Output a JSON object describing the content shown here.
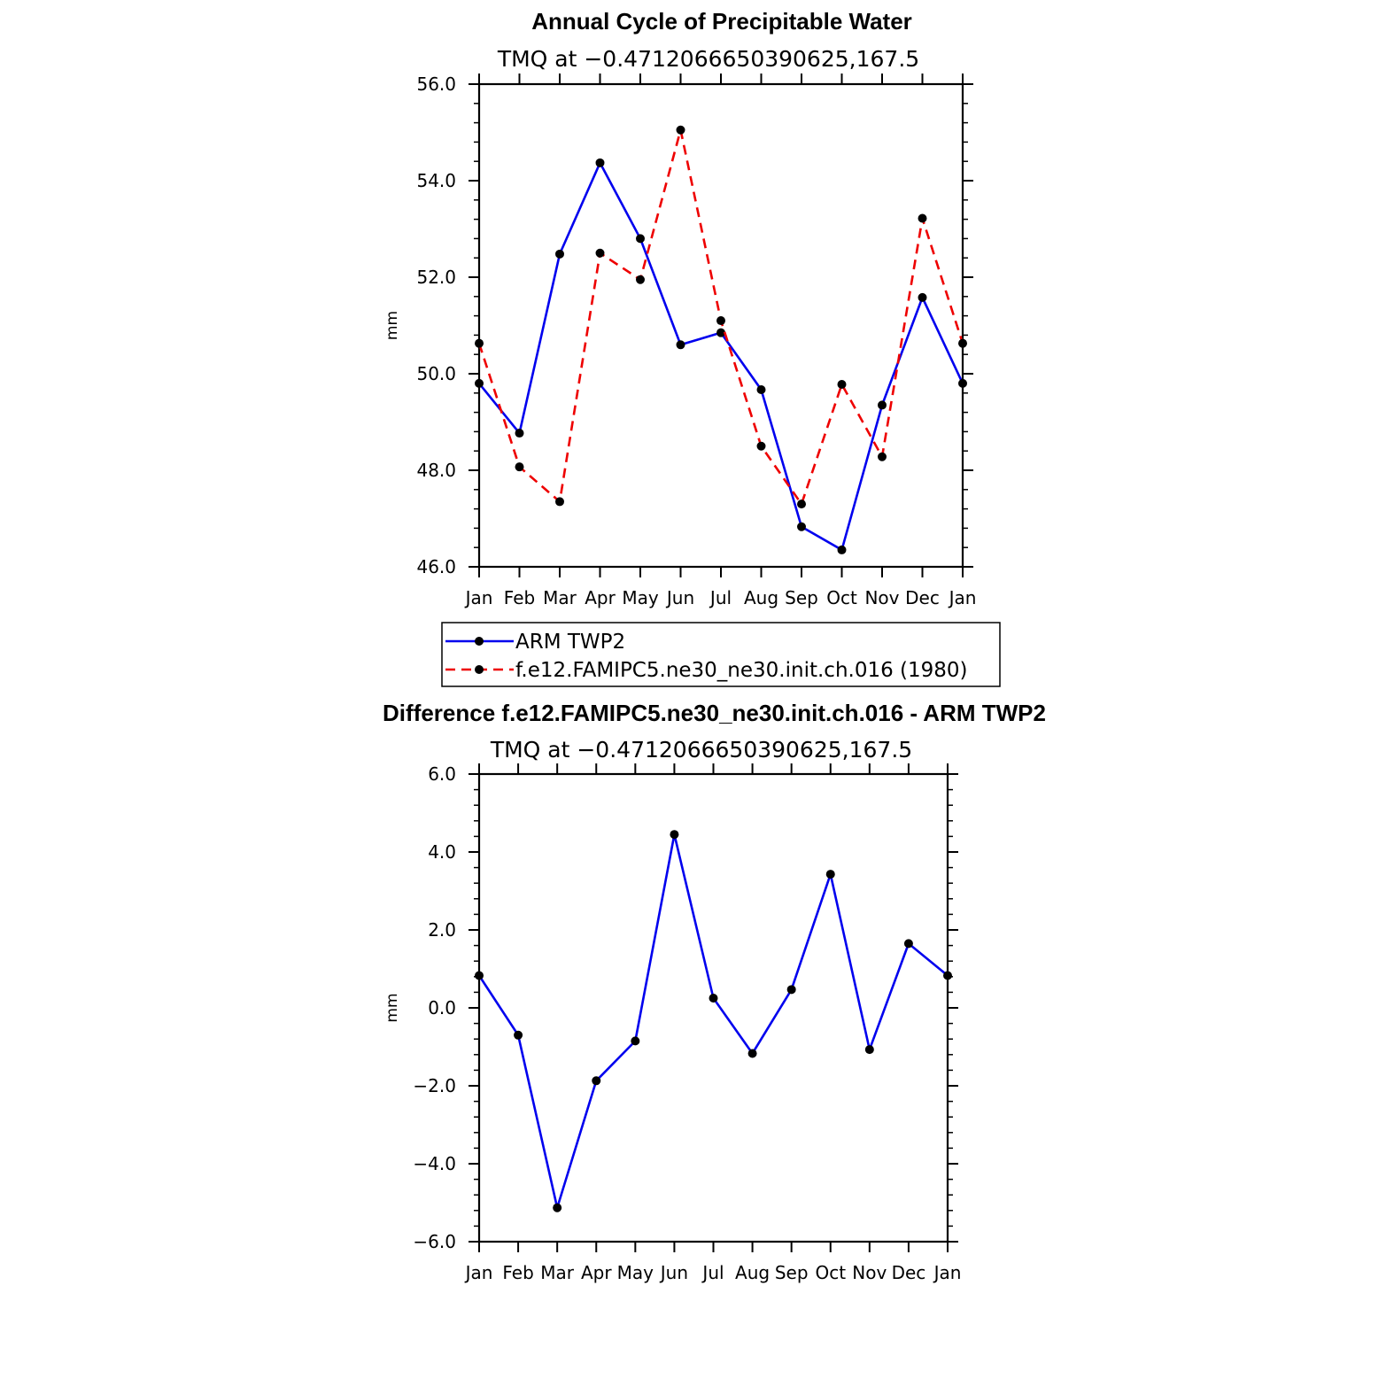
{
  "chart_data": [
    {
      "type": "line",
      "title": "Annual Cycle of Precipitable Water",
      "subtitle": "TMQ  at  −0.4712066650390625,167.5",
      "ylabel": "mm",
      "ylim": [
        46.0,
        56.0
      ],
      "yticks": [
        "46.0",
        "48.0",
        "50.0",
        "52.0",
        "54.0",
        "56.0"
      ],
      "categories": [
        "Jan",
        "Feb",
        "Mar",
        "Apr",
        "May",
        "Jun",
        "Jul",
        "Aug",
        "Sep",
        "Oct",
        "Nov",
        "Dec",
        "Jan"
      ],
      "series": [
        {
          "name": "ARM  TWP2",
          "color": "#0000ee",
          "dash": "solid",
          "values": [
            49.8,
            48.77,
            52.48,
            54.37,
            52.8,
            50.6,
            50.85,
            49.67,
            46.83,
            46.35,
            49.35,
            51.58,
            49.8
          ]
        },
        {
          "name": "f.e12.FAMIPC5.ne30_ne30.init.ch.016  (1980)",
          "color": "#ee0000",
          "dash": "dashed",
          "values": [
            50.63,
            48.07,
            47.35,
            52.5,
            51.95,
            55.05,
            51.1,
            48.5,
            47.3,
            49.78,
            48.28,
            53.22,
            50.63
          ]
        }
      ],
      "legend_position": "bottom-center"
    },
    {
      "type": "line",
      "title": "Difference f.e12.FAMIPC5.ne30_ne30.init.ch.016 - ARM TWP2",
      "subtitle": "TMQ  at  −0.4712066650390625,167.5",
      "ylabel": "mm",
      "ylim": [
        -6.0,
        6.0
      ],
      "yticks": [
        "−6.0",
        "−4.0",
        "−2.0",
        "0.0",
        "2.0",
        "4.0",
        "6.0"
      ],
      "categories": [
        "Jan",
        "Feb",
        "Mar",
        "Apr",
        "May",
        "Jun",
        "Jul",
        "Aug",
        "Sep",
        "Oct",
        "Nov",
        "Dec",
        "Jan"
      ],
      "series": [
        {
          "color": "#0000ee",
          "dash": "solid",
          "values": [
            0.83,
            -0.7,
            -5.13,
            -1.87,
            -0.85,
            4.45,
            0.25,
            -1.17,
            0.47,
            3.43,
            -1.07,
            1.65,
            0.83
          ]
        }
      ]
    }
  ]
}
